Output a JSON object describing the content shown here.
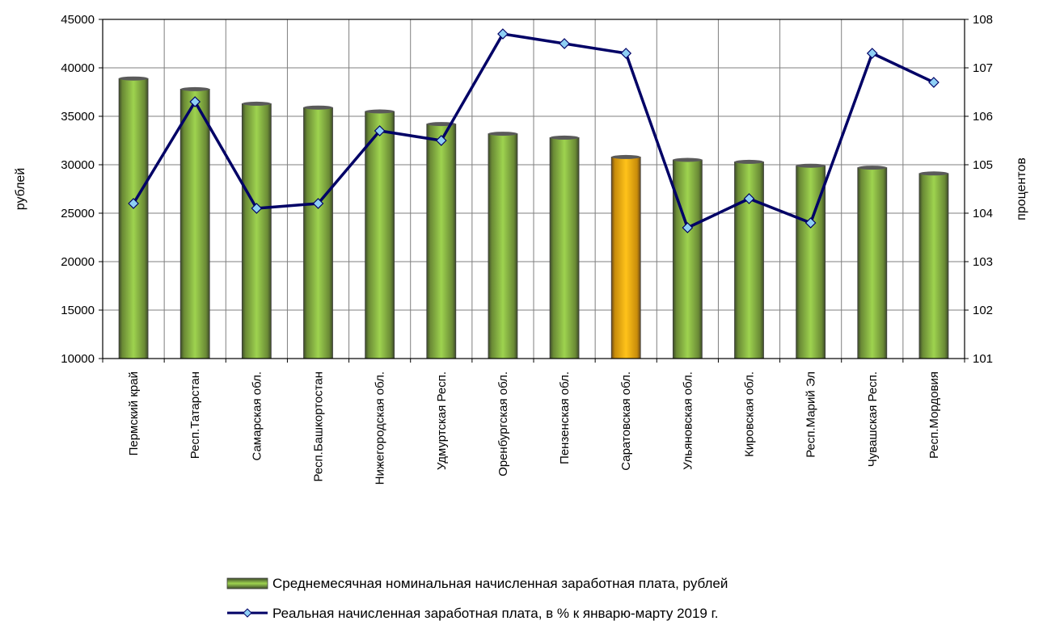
{
  "chart_data": {
    "type": "bar",
    "categories": [
      "Пермский край",
      "Респ.Татарстан",
      "Самарская обл.",
      "Респ.Башкортостан",
      "Нижегородская обл.",
      "Удмуртская Респ.",
      "Оренбургская обл.",
      "Пензенская обл.",
      "Саратовская обл.",
      "Ульяновская обл.",
      "Кировская обл.",
      "Респ.Марий Эл",
      "Чувашская Респ.",
      "Респ.Мордовия"
    ],
    "series": [
      {
        "name": "Среднемесячная номинальная начисленная  заработная плата, рублей",
        "type": "bar",
        "axis": "left",
        "values": [
          38900,
          37800,
          36300,
          35900,
          35500,
          34200,
          33200,
          32800,
          30800,
          30500,
          30300,
          29900,
          29700,
          29100
        ],
        "highlight_index": 8
      },
      {
        "name": "Реальная начисленная заработная плата, в % к январю-марту 2019 г.",
        "type": "line",
        "axis": "right",
        "values": [
          104.2,
          106.3,
          104.1,
          104.2,
          105.7,
          105.5,
          107.7,
          107.5,
          107.3,
          103.7,
          104.3,
          103.8,
          107.3,
          106.7
        ]
      }
    ],
    "ylabel": "рублей",
    "y2label": "процентов",
    "ylim": [
      10000,
      45000
    ],
    "y2lim": [
      101,
      108
    ],
    "yticks": [
      10000,
      15000,
      20000,
      25000,
      30000,
      35000,
      40000,
      45000
    ],
    "y2ticks": [
      101,
      102,
      103,
      104,
      105,
      106,
      107,
      108
    ],
    "grid": true,
    "legend_position": "bottom",
    "colors": {
      "bar": "#8cc63f",
      "bar_highlight": "#f5b800",
      "line": "#000066",
      "marker": "#8fd0f5",
      "grid": "#7f7f7f"
    }
  }
}
